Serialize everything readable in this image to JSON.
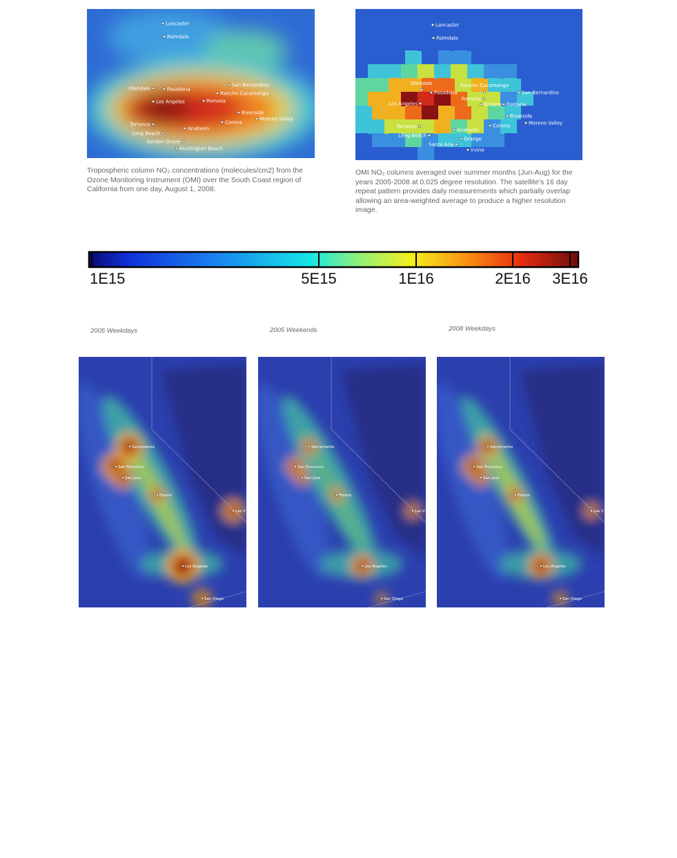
{
  "top_maps": [
    {
      "cities": [
        "Lancaster",
        "Palmdale",
        "Glendale",
        "Pasadena",
        "Los Angeles",
        "San Bernardino",
        "Rancho Cucamonga",
        "Pomona",
        "Riverside",
        "Corona",
        "Moreno Valley",
        "Torrance",
        "Long Beach",
        "Anaheim",
        "Garden Grove",
        "Huntington Beach"
      ],
      "caption": "Tropospheric column NO₂ concentrations (molecules/cm2) from the Ozone Monitoring Instrument (OMI) over the South Coast region of California from one day, August 1, 2008."
    },
    {
      "cities": [
        "Lancaster",
        "Palmdale",
        "Glendale",
        "Pasadena",
        "Los Angeles",
        "Rancho Cucamonga",
        "San Bernardino",
        "Pomona",
        "Ontario",
        "Fontana",
        "Riverside",
        "Corona",
        "Moreno Valley",
        "Torrance",
        "Long Beach",
        "Anaheim",
        "Orange",
        "Santa Ana",
        "Irvine"
      ],
      "caption": "OMI NO₂ columns averaged over summer months (Jun-Aug) for the years 2005-2008 at 0.025 degree resolution. The satellite's 16 day repeat pattern provides daily measurements which partially overlap allowing an area-weighted average to produce a higher resolution image."
    }
  ],
  "colorbar": {
    "labels": [
      "1E15",
      "5E15",
      "1E16",
      "2E16",
      "3E16"
    ]
  },
  "bottom_maps": [
    {
      "title": "2005 Weekdays",
      "cities": [
        "Sacramento",
        "San Francisco",
        "San Jose",
        "Fresno",
        "Las V",
        "Los Angeles",
        "San Diego"
      ]
    },
    {
      "title": "2005 Weekends",
      "cities": [
        "Sacramento",
        "San Francisco",
        "San Jose",
        "Fresno",
        "Las V",
        "Los Angeles",
        "San Diego"
      ]
    },
    {
      "title": "2008 Weekdays",
      "cities": [
        "Sacramento",
        "San Francisco",
        "San Jose",
        "Fresno",
        "Las V",
        "Los Angeles",
        "San Diego"
      ]
    }
  ]
}
